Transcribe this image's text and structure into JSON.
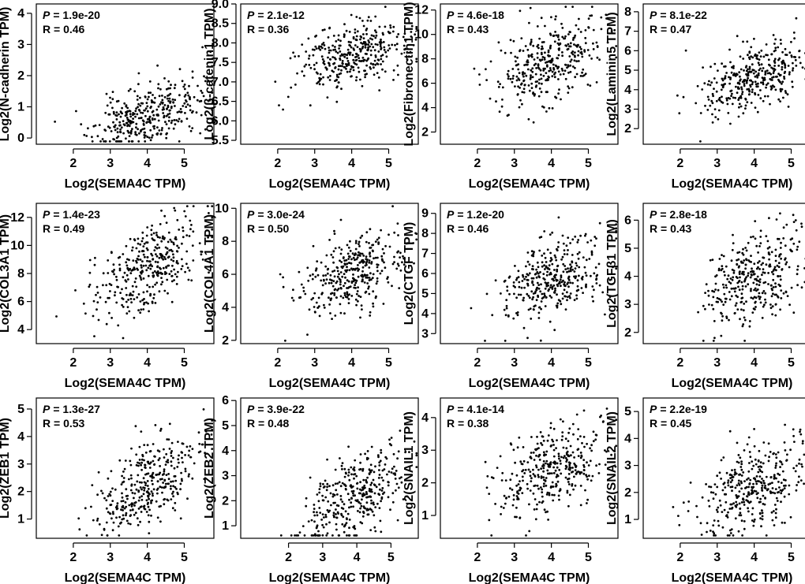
{
  "figure": {
    "layout": "3x4"
  },
  "chart_data": [
    {
      "type": "scatter",
      "xlabel": "Log2(SEMA4C TPM)",
      "ylabel": "Log2(N-cadherin TPM)",
      "p_label": "P",
      "p_value": "= 1.9e-20",
      "r_text": "R = 0.46",
      "r": 0.46,
      "xlim": [
        1.0,
        5.8
      ],
      "ylim": [
        -0.2,
        4.3
      ],
      "xticks": [
        2,
        3,
        4,
        5
      ],
      "yticks": [
        0,
        1,
        2,
        3,
        4
      ],
      "y_center": 0.7,
      "y_spread": 0.55,
      "n_points": 360,
      "seed": 11
    },
    {
      "type": "scatter",
      "xlabel": "Log2(SEMA4C TPM)",
      "ylabel": "Log2(β-catenin1 TPM)",
      "p_label": "P",
      "p_value": "= 2.1e-12",
      "r_text": "R = 0.36",
      "r": 0.36,
      "xlim": [
        1.0,
        5.8
      ],
      "ylim": [
        5.4,
        9.0
      ],
      "xticks": [
        2,
        3,
        4,
        5
      ],
      "yticks": [
        5.5,
        6.0,
        6.5,
        7.0,
        7.5,
        8.0,
        8.5,
        9.0
      ],
      "y_center": 7.65,
      "y_spread": 0.45,
      "n_points": 360,
      "seed": 23
    },
    {
      "type": "scatter",
      "xlabel": "Log2(SEMA4C TPM)",
      "ylabel": "Log2(Fibronectin1 TPM)",
      "p_label": "P",
      "p_value": "= 4.6e-18",
      "r_text": "R = 0.43",
      "r": 0.43,
      "xlim": [
        1.0,
        5.8
      ],
      "ylim": [
        1.0,
        12.5
      ],
      "xticks": [
        2,
        3,
        4,
        5
      ],
      "yticks": [
        2,
        4,
        6,
        8,
        10,
        12
      ],
      "y_center": 7.8,
      "y_spread": 1.8,
      "n_points": 360,
      "seed": 37
    },
    {
      "type": "scatter",
      "xlabel": "Log2(SEMA4C TPM)",
      "ylabel": "Log2(Laminin5 TPM)",
      "p_label": "P",
      "p_value": "= 8.1e-22",
      "r_text": "R = 0.47",
      "r": 0.47,
      "xlim": [
        1.0,
        5.8
      ],
      "ylim": [
        1.2,
        8.4
      ],
      "xticks": [
        2,
        3,
        4,
        5
      ],
      "yticks": [
        2,
        3,
        4,
        5,
        6,
        7,
        8
      ],
      "y_center": 4.7,
      "y_spread": 1.05,
      "n_points": 360,
      "seed": 41
    },
    {
      "type": "scatter",
      "xlabel": "Log2(SEMA4C TPM)",
      "ylabel": "Log2(COL3A1 TPM)",
      "p_label": "P",
      "p_value": "= 1.4e-23",
      "r_text": "R = 0.49",
      "r": 0.49,
      "xlim": [
        1.0,
        5.8
      ],
      "ylim": [
        3.0,
        13.0
      ],
      "xticks": [
        2,
        3,
        4,
        5
      ],
      "yticks": [
        4,
        6,
        8,
        10,
        12
      ],
      "y_center": 8.4,
      "y_spread": 1.7,
      "n_points": 360,
      "seed": 53
    },
    {
      "type": "scatter",
      "xlabel": "Log2(SEMA4C TPM)",
      "ylabel": "Log2(COL4A1 TPM)",
      "p_label": "P",
      "p_value": "= 3.0e-24",
      "r_text": "R = 0.50",
      "r": 0.5,
      "xlim": [
        1.0,
        5.8
      ],
      "ylim": [
        1.8,
        10.3
      ],
      "xticks": [
        2,
        3,
        4,
        5
      ],
      "yticks": [
        2,
        4,
        6,
        8,
        10
      ],
      "y_center": 6.1,
      "y_spread": 1.25,
      "n_points": 360,
      "seed": 67
    },
    {
      "type": "scatter",
      "xlabel": "Log2(SEMA4C TPM)",
      "ylabel": "Log2(CTGF TPM)",
      "p_label": "P",
      "p_value": "= 1.2e-20",
      "r_text": "R = 0.46",
      "r": 0.46,
      "xlim": [
        1.0,
        5.8
      ],
      "ylim": [
        2.5,
        9.5
      ],
      "xticks": [
        2,
        3,
        4,
        5
      ],
      "yticks": [
        3,
        4,
        5,
        6,
        7,
        8,
        9
      ],
      "y_center": 5.8,
      "y_spread": 1.1,
      "n_points": 360,
      "seed": 71
    },
    {
      "type": "scatter",
      "xlabel": "Log2(SEMA4C TPM)",
      "ylabel": "Log2(TGFβ1 TPM)",
      "p_label": "P",
      "p_value": "= 2.8e-18",
      "r_text": "R = 0.43",
      "r": 0.43,
      "xlim": [
        1.0,
        5.8
      ],
      "ylim": [
        1.6,
        6.6
      ],
      "xticks": [
        2,
        3,
        4,
        5
      ],
      "yticks": [
        2,
        3,
        4,
        5,
        6
      ],
      "y_center": 4.0,
      "y_spread": 0.95,
      "n_points": 360,
      "seed": 83
    },
    {
      "type": "scatter",
      "xlabel": "Log2(SEMA4C TPM)",
      "ylabel": "Log2(ZEB1 TPM)",
      "p_label": "P",
      "p_value": "= 1.3e-27",
      "r_text": "R = 0.53",
      "r": 0.53,
      "xlim": [
        1.0,
        5.8
      ],
      "ylim": [
        0.3,
        5.4
      ],
      "xticks": [
        2,
        3,
        4,
        5
      ],
      "yticks": [
        1,
        2,
        3,
        4,
        5
      ],
      "y_center": 2.2,
      "y_spread": 0.9,
      "n_points": 360,
      "seed": 97
    },
    {
      "type": "scatter",
      "xlabel": "Log2(SEMA4C TPM)",
      "ylabel": "Log2(ZEB2 TPM)",
      "p_label": "P",
      "p_value": "= 3.9e-22",
      "r_text": "R = 0.48",
      "r": 0.48,
      "xlim": [
        0.6,
        5.8
      ],
      "ylim": [
        0.5,
        6.1
      ],
      "xticks": [
        2,
        3,
        4,
        5
      ],
      "yticks": [
        1,
        2,
        3,
        4,
        5,
        6
      ],
      "y_center": 2.3,
      "y_spread": 1.0,
      "n_points": 360,
      "seed": 101
    },
    {
      "type": "scatter",
      "xlabel": "Log2(SEMA4C TPM)",
      "ylabel": "Log2(SNAIL1 TPM)",
      "p_label": "P",
      "p_value": "= 4.1e-14",
      "r_text": "R = 0.38",
      "r": 0.38,
      "xlim": [
        1.0,
        5.8
      ],
      "ylim": [
        0.3,
        4.6
      ],
      "xticks": [
        2,
        3,
        4,
        5
      ],
      "yticks": [
        1,
        2,
        3,
        4
      ],
      "y_center": 2.4,
      "y_spread": 0.7,
      "n_points": 360,
      "seed": 113
    },
    {
      "type": "scatter",
      "xlabel": "Log2(SEMA4C TPM)",
      "ylabel": "Log2(SNAIL2 TPM)",
      "p_label": "P",
      "p_value": "= 2.2e-19",
      "r_text": "R = 0.45",
      "r": 0.45,
      "xlim": [
        1.0,
        5.8
      ],
      "ylim": [
        0.3,
        5.5
      ],
      "xticks": [
        2,
        3,
        4,
        5
      ],
      "yticks": [
        1,
        2,
        3,
        4,
        5
      ],
      "y_center": 2.3,
      "y_spread": 0.9,
      "n_points": 360,
      "seed": 127
    }
  ]
}
